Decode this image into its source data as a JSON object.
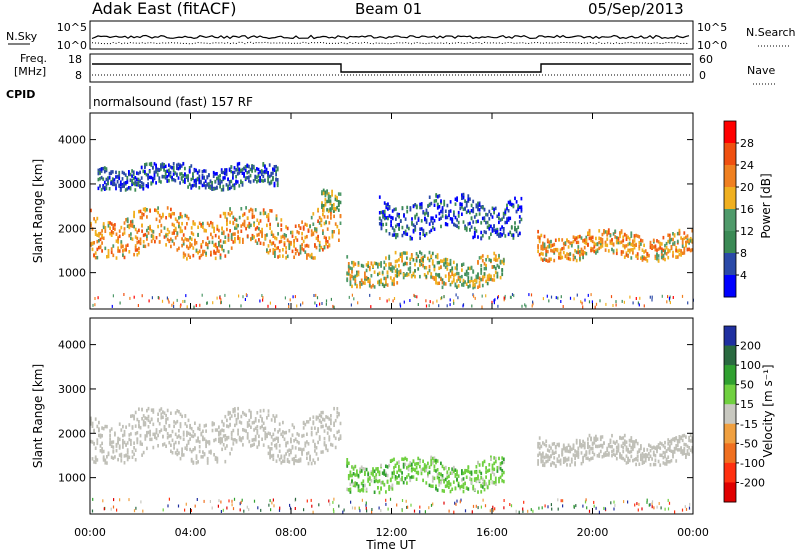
{
  "header": {
    "station": "Adak East (fitACF)",
    "beam": "Beam 01",
    "date": "05/Sep/2013"
  },
  "labels": {
    "nsky": "N.Sky",
    "nsearch": "N.Search",
    "freq_top": "Freq.",
    "freq_unit": "[MHz]",
    "nave": "Nave",
    "cpid": "CPID",
    "cpid_value": "normalsound (fast) 157 RF",
    "nsky_hi": "10^5",
    "nsky_lo": "10^0",
    "nsearch_hi": "10^5",
    "nsearch_lo": "10^0",
    "freq_hi": "18",
    "freq_lo": "8",
    "nave_hi": "60",
    "nave_lo": "0"
  },
  "colors": {
    "power_scale": [
      "#0000ff",
      "#2b4aa8",
      "#3b8a55",
      "#4f9a6a",
      "#f0b020",
      "#f08020",
      "#f05010",
      "#ff0000"
    ],
    "velocity_scale": [
      "#2030a0",
      "#2a6a40",
      "#30a030",
      "#70d040",
      "#c8c8c0",
      "#f0a040",
      "#f07020",
      "#ff3010",
      "#e00000"
    ],
    "ground_scatter": "#c0c0b8"
  },
  "chart_data": [
    {
      "type": "heatmap",
      "panel": "power",
      "xlabel": "",
      "ylabel": "Slant Range [km]",
      "x_ticks": [
        "00:00",
        "04:00",
        "08:00",
        "12:00",
        "16:00",
        "20:00",
        "00:00"
      ],
      "y_ticks": [
        1000,
        2000,
        3000,
        4000
      ],
      "ylim": [
        180,
        4600
      ],
      "xlim_hours": [
        0,
        24
      ],
      "colorbar_label": "Power [dB]",
      "colorbar_ticks": [
        4,
        8,
        12,
        16,
        20,
        24,
        28
      ],
      "regions": [
        {
          "t0": 0.0,
          "t1": 10.0,
          "r0": 1350,
          "r1": 2500,
          "level_db": 20
        },
        {
          "t0": 9.2,
          "t1": 10.0,
          "r0": 2400,
          "r1": 3000,
          "level_db": 14
        },
        {
          "t0": 10.2,
          "t1": 16.5,
          "r0": 700,
          "r1": 1500,
          "level_db": 16
        },
        {
          "t0": 11.5,
          "t1": 17.2,
          "r0": 1800,
          "r1": 2800,
          "level_db": 6
        },
        {
          "t0": 17.8,
          "t1": 24.0,
          "r0": 1300,
          "r1": 2000,
          "level_db": 20
        },
        {
          "t0": 0.3,
          "t1": 7.5,
          "r0": 2900,
          "r1": 3500,
          "level_db": 6
        }
      ]
    },
    {
      "type": "heatmap",
      "panel": "velocity",
      "xlabel": "Time UT",
      "ylabel": "Slant Range [km]",
      "x_ticks": [
        "00:00",
        "04:00",
        "08:00",
        "12:00",
        "16:00",
        "20:00",
        "00:00"
      ],
      "y_ticks": [
        1000,
        2000,
        3000,
        4000
      ],
      "ylim": [
        180,
        4600
      ],
      "xlim_hours": [
        0,
        24
      ],
      "colorbar_label": "Velocity [m s⁻¹]",
      "colorbar_ticks": [
        200,
        100,
        50,
        15,
        -15,
        -50,
        -100,
        -200
      ],
      "regions": [
        {
          "t0": 0.0,
          "t1": 10.0,
          "r0": 1350,
          "r1": 2600,
          "level_ms": 0
        },
        {
          "t0": 10.2,
          "t1": 16.5,
          "r0": 700,
          "r1": 1500,
          "level_ms": 60
        },
        {
          "t0": 17.8,
          "t1": 24.0,
          "r0": 1300,
          "r1": 2000,
          "level_ms": 0
        }
      ]
    }
  ]
}
